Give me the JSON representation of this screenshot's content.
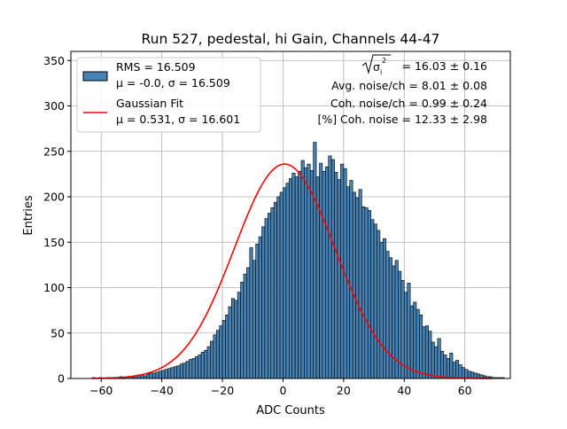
{
  "chart_data": {
    "type": "bar",
    "title": "Run 527, pedestal, hi Gain, Channels 44-47",
    "xlabel": "ADC Counts",
    "ylabel": "Entries",
    "xlim": [
      -70,
      75
    ],
    "ylim": [
      0,
      360
    ],
    "grid": true,
    "xticks": [
      -60,
      -40,
      -20,
      0,
      20,
      40,
      60
    ],
    "yticks": [
      0,
      50,
      100,
      150,
      200,
      250,
      300,
      350
    ],
    "colors": {
      "bars": "#4682b4",
      "bar_edge": "#000000",
      "fit": "#ff0000",
      "grid": "#b0b0b0"
    },
    "histogram": {
      "name": "RMS = 16.509",
      "stats": "μ = -0.0, σ = 16.509",
      "bin_width": 1,
      "bins_start": -63,
      "counts": [
        1,
        0,
        1,
        0,
        0,
        1,
        1,
        1,
        1,
        2,
        1,
        2,
        2,
        2,
        3,
        4,
        4,
        3,
        5,
        6,
        6,
        7,
        8,
        9,
        10,
        11,
        12,
        13,
        14,
        16,
        17,
        19,
        21,
        22,
        24,
        26,
        29,
        31,
        35,
        41,
        48,
        53,
        58,
        64,
        70,
        79,
        88,
        86,
        95,
        106,
        115,
        122,
        144,
        130,
        148,
        156,
        167,
        176,
        182,
        188,
        194,
        200,
        205,
        210,
        215,
        220,
        226,
        222,
        228,
        240,
        232,
        236,
        229,
        260,
        222,
        237,
        228,
        233,
        245,
        241,
        227,
        219,
        236,
        231,
        211,
        218,
        205,
        199,
        208,
        189,
        188,
        185,
        175,
        170,
        163,
        150,
        154,
        140,
        133,
        124,
        130,
        118,
        108,
        95,
        105,
        80,
        84,
        76,
        70,
        57,
        58,
        52,
        40,
        35,
        44,
        30,
        26,
        22,
        28,
        18,
        20,
        15,
        12,
        10,
        8,
        7,
        6,
        5,
        4,
        3,
        2,
        2,
        1,
        1,
        1,
        1
      ]
    },
    "fit": {
      "name": "Gaussian Fit",
      "stats": "μ = 0.531, σ = 16.601",
      "amplitude": 236,
      "mu": 0.531,
      "sigma": 16.601,
      "x_range": [
        -63,
        69
      ]
    },
    "legend": {
      "location": "upper-left",
      "entries": [
        {
          "line1": "RMS = 16.509",
          "line2": "μ = -0.0, σ = 16.509",
          "symbol": "patch"
        },
        {
          "line1": "Gaussian Fit",
          "line2": "μ = 0.531, σ = 16.601",
          "symbol": "line"
        }
      ]
    },
    "annotations": {
      "sqrt_sigma": "= 16.03 ± 0.16",
      "sqrt_sigma_symbol": "σ",
      "sqrt_sigma_sub": "i",
      "sqrt_sigma_sup": "2",
      "avg_noise": "Avg. noise/ch = 8.01 ± 0.08",
      "coh_noise": "Coh. noise/ch = 0.99 ± 0.24",
      "pct_coh_noise": "[%] Coh. noise = 12.33 ± 2.98"
    }
  }
}
